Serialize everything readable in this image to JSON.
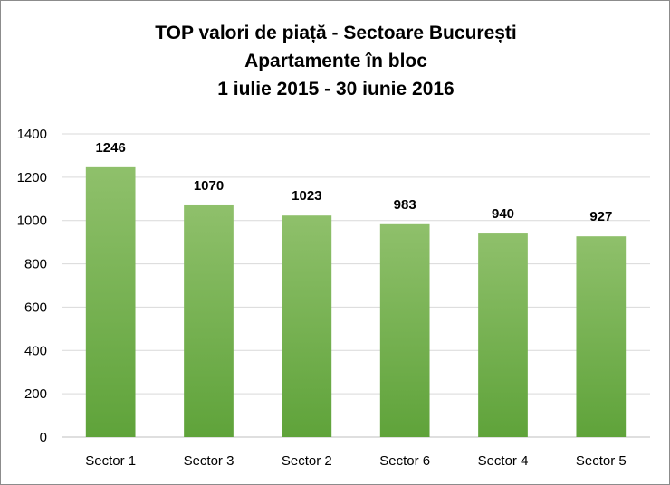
{
  "chart_data": {
    "type": "bar",
    "title_lines": [
      "TOP valori de piață - Sectoare București",
      "Apartamente în bloc",
      "1 iulie 2015 - 30 iunie 2016"
    ],
    "categories": [
      "Sector 1",
      "Sector 3",
      "Sector 2",
      "Sector 6",
      "Sector 4",
      "Sector 5"
    ],
    "values": [
      1246,
      1070,
      1023,
      983,
      940,
      927
    ],
    "ylim": [
      0,
      1400
    ],
    "yticks": [
      0,
      200,
      400,
      600,
      800,
      1000,
      1200,
      1400
    ],
    "grid": true,
    "legend": "none",
    "colors": {
      "bar_top": "#8fc06b",
      "bar_bottom": "#5fa33a",
      "grid": "#d9d9d9",
      "axis": "#bfbfbf"
    }
  }
}
